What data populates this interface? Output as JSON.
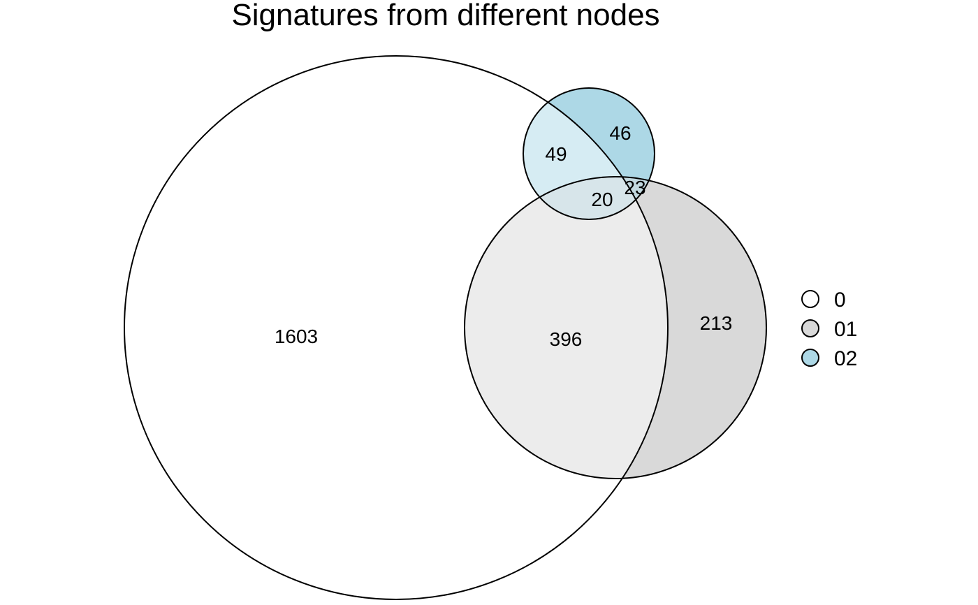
{
  "chart_data": {
    "type": "venn",
    "title": "Signatures from different nodes",
    "sets": [
      {
        "name": "0",
        "color": "#ffffff"
      },
      {
        "name": "01",
        "color": "#d9d9d9"
      },
      {
        "name": "02",
        "color": "#add8e6"
      }
    ],
    "regions": [
      {
        "sets": [
          "0"
        ],
        "value": 1603
      },
      {
        "sets": [
          "01"
        ],
        "value": 213
      },
      {
        "sets": [
          "02"
        ],
        "value": 46
      },
      {
        "sets": [
          "0",
          "01"
        ],
        "value": 396
      },
      {
        "sets": [
          "0",
          "02"
        ],
        "value": 49
      },
      {
        "sets": [
          "01",
          "02"
        ],
        "value": 23
      },
      {
        "sets": [
          "0",
          "01",
          "02"
        ],
        "value": 20
      }
    ],
    "legend": {
      "position": "right",
      "entries": [
        "0",
        "01",
        "02"
      ]
    }
  }
}
